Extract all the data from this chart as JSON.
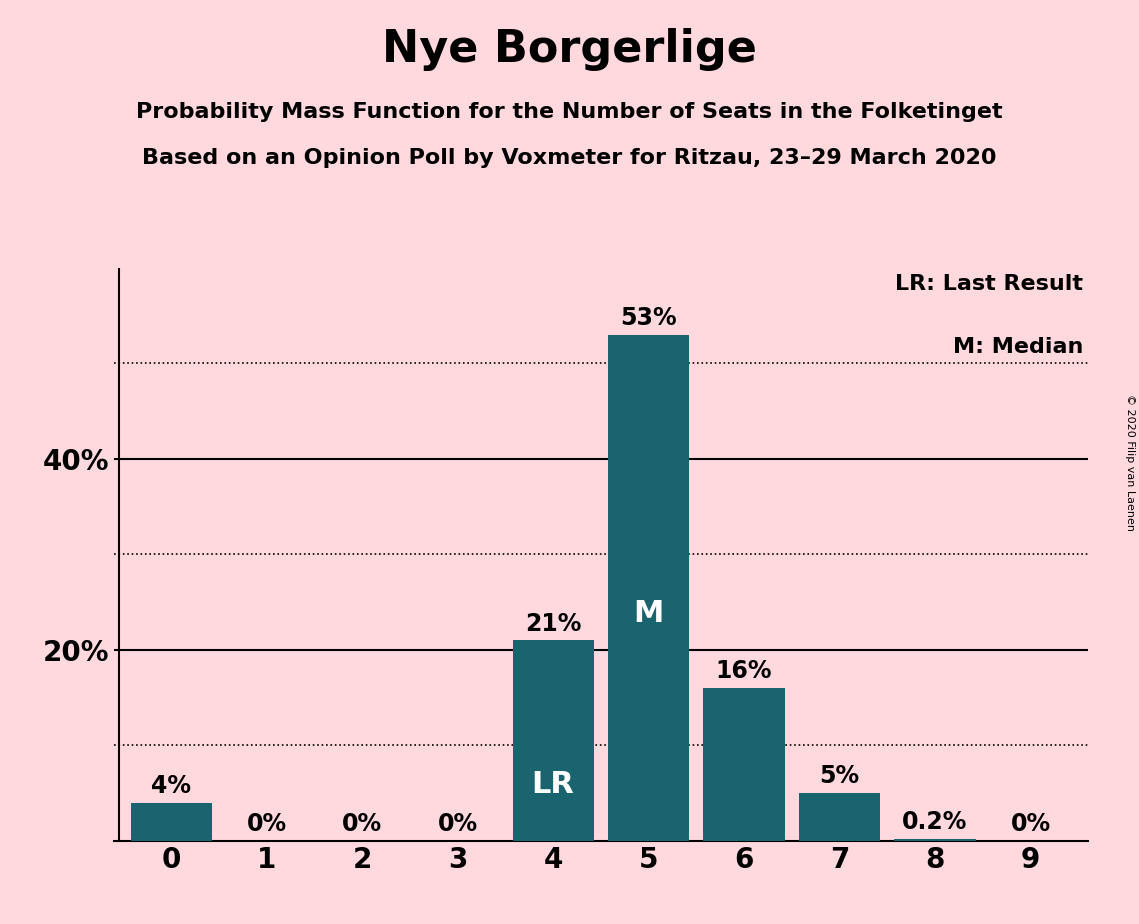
{
  "title": "Nye Borgerlige",
  "subtitle1": "Probability Mass Function for the Number of Seats in the Folketinget",
  "subtitle2": "Based on an Opinion Poll by Voxmeter for Ritzau, 23–29 March 2020",
  "copyright": "© 2020 Filip van Laenen",
  "categories": [
    0,
    1,
    2,
    3,
    4,
    5,
    6,
    7,
    8,
    9
  ],
  "values": [
    4,
    0,
    0,
    0,
    21,
    53,
    16,
    5,
    0.2,
    0
  ],
  "bar_color": "#1a6470",
  "background_color": "#ffd9de",
  "bar_labels": [
    "4%",
    "0%",
    "0%",
    "0%",
    "21%",
    "53%",
    "16%",
    "5%",
    "0.2%",
    "0%"
  ],
  "inside_labels": [
    {
      "bar": 4,
      "text": "LR",
      "color": "white"
    },
    {
      "bar": 5,
      "text": "M",
      "color": "white"
    }
  ],
  "legend_lines": [
    "LR: Last Result",
    "M: Median"
  ],
  "yticks_labeled": [
    20,
    40
  ],
  "ytick_labels": [
    "20%",
    "40%"
  ],
  "yticks_all": [
    0,
    10,
    20,
    30,
    40,
    50
  ],
  "ylim": [
    0,
    60
  ],
  "dotted_lines": [
    10,
    30,
    50
  ],
  "solid_lines": [
    20,
    40
  ],
  "title_fontsize": 32,
  "subtitle_fontsize": 16,
  "axis_fontsize": 20,
  "label_fontsize": 17,
  "inside_label_fontsize": 22,
  "legend_fontsize": 16
}
